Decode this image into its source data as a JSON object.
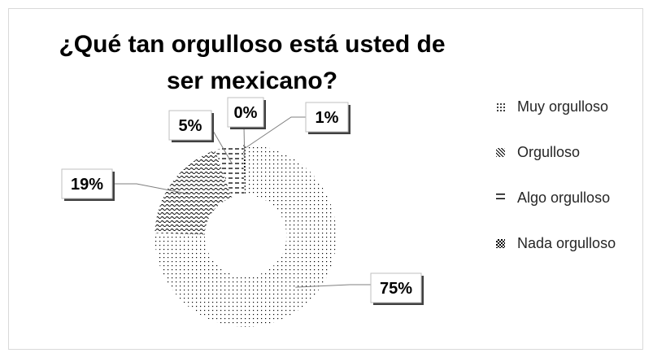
{
  "chart_data": {
    "type": "pie",
    "variant": "doughnut",
    "title": "¿Qué tan orgulloso está usted de ser mexicano?",
    "categories": [
      "Muy orgulloso",
      "Orgulloso",
      "Algo orgulloso",
      "Nada orgulloso"
    ],
    "values": [
      75,
      19,
      5,
      0.4
    ],
    "data_labels": [
      "75%",
      "19%",
      "5%",
      "0%"
    ],
    "extra_label": "1%",
    "legend_position": "right",
    "patterns": [
      "dots",
      "waves",
      "dashes",
      "checker"
    ]
  }
}
